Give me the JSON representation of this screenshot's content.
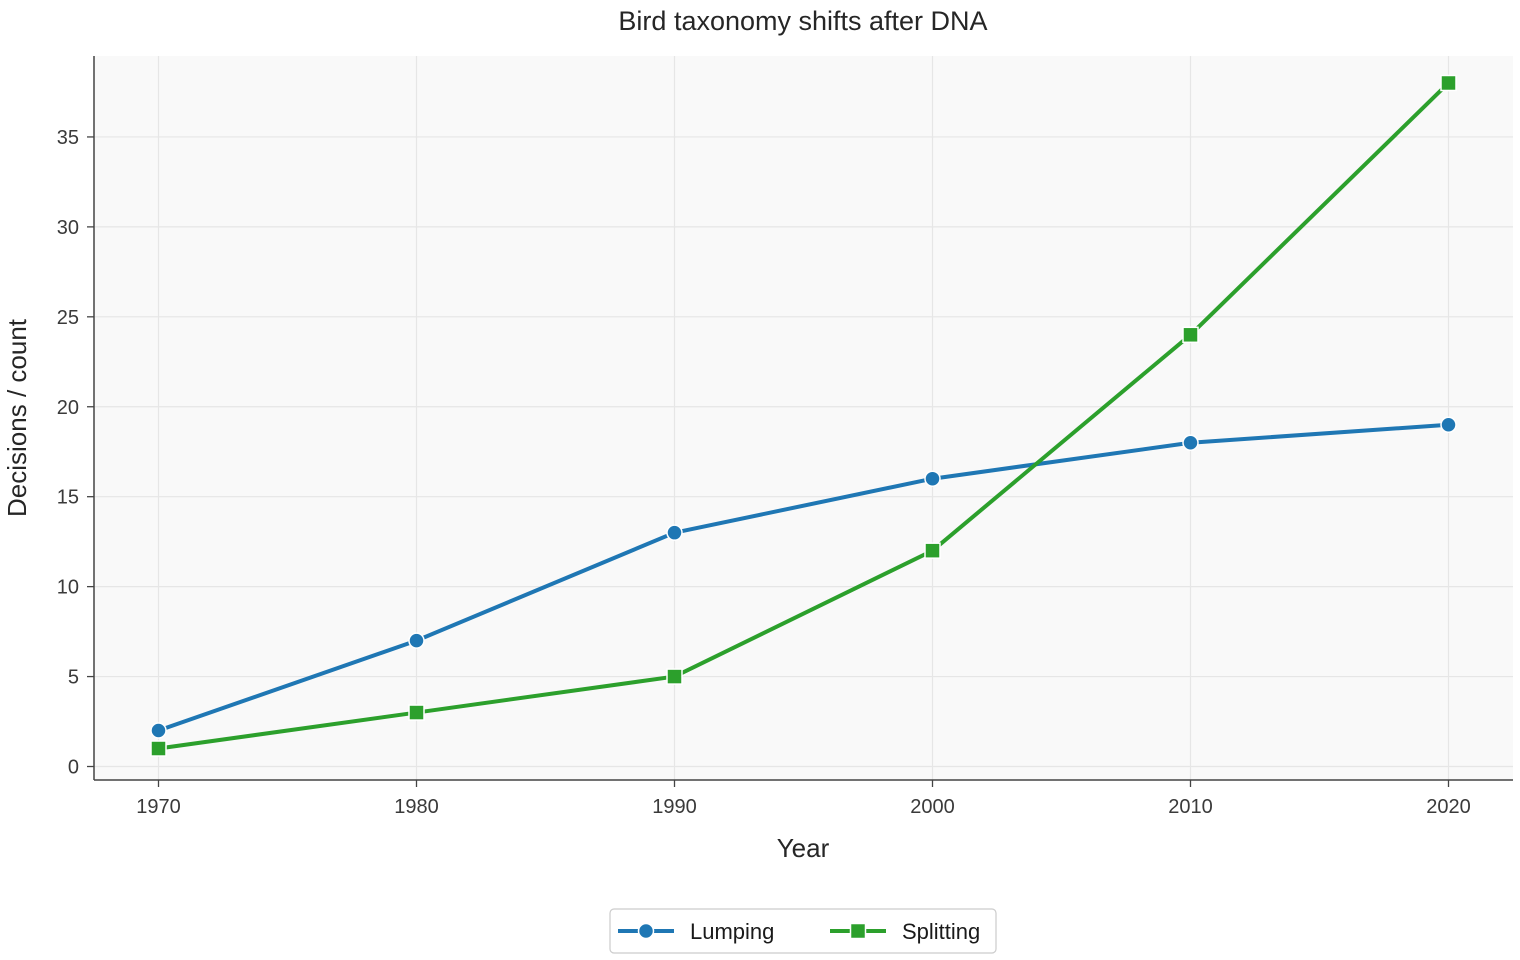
{
  "chart_data": {
    "type": "line",
    "title": "Bird taxonomy shifts after DNA",
    "xlabel": "Year",
    "ylabel": "Decisions / count",
    "x": [
      1970,
      1980,
      1990,
      2000,
      2010,
      2020
    ],
    "xlim": [
      1967.5,
      2022.5
    ],
    "ylim": [
      -0.75,
      39.5
    ],
    "xticks": [
      "1970",
      "1980",
      "1990",
      "2000",
      "2010",
      "2020"
    ],
    "yticks": [
      "0",
      "5",
      "10",
      "15",
      "20",
      "25",
      "30",
      "35"
    ],
    "grid": true,
    "legend_position": "bottom-center",
    "series": [
      {
        "name": "Lumping",
        "values": [
          2,
          7,
          13,
          16,
          18,
          19
        ],
        "color": "#1f77b4",
        "marker": "circle"
      },
      {
        "name": "Splitting",
        "values": [
          1,
          3,
          5,
          12,
          24,
          38
        ],
        "color": "#2ca02c",
        "marker": "square"
      }
    ]
  }
}
